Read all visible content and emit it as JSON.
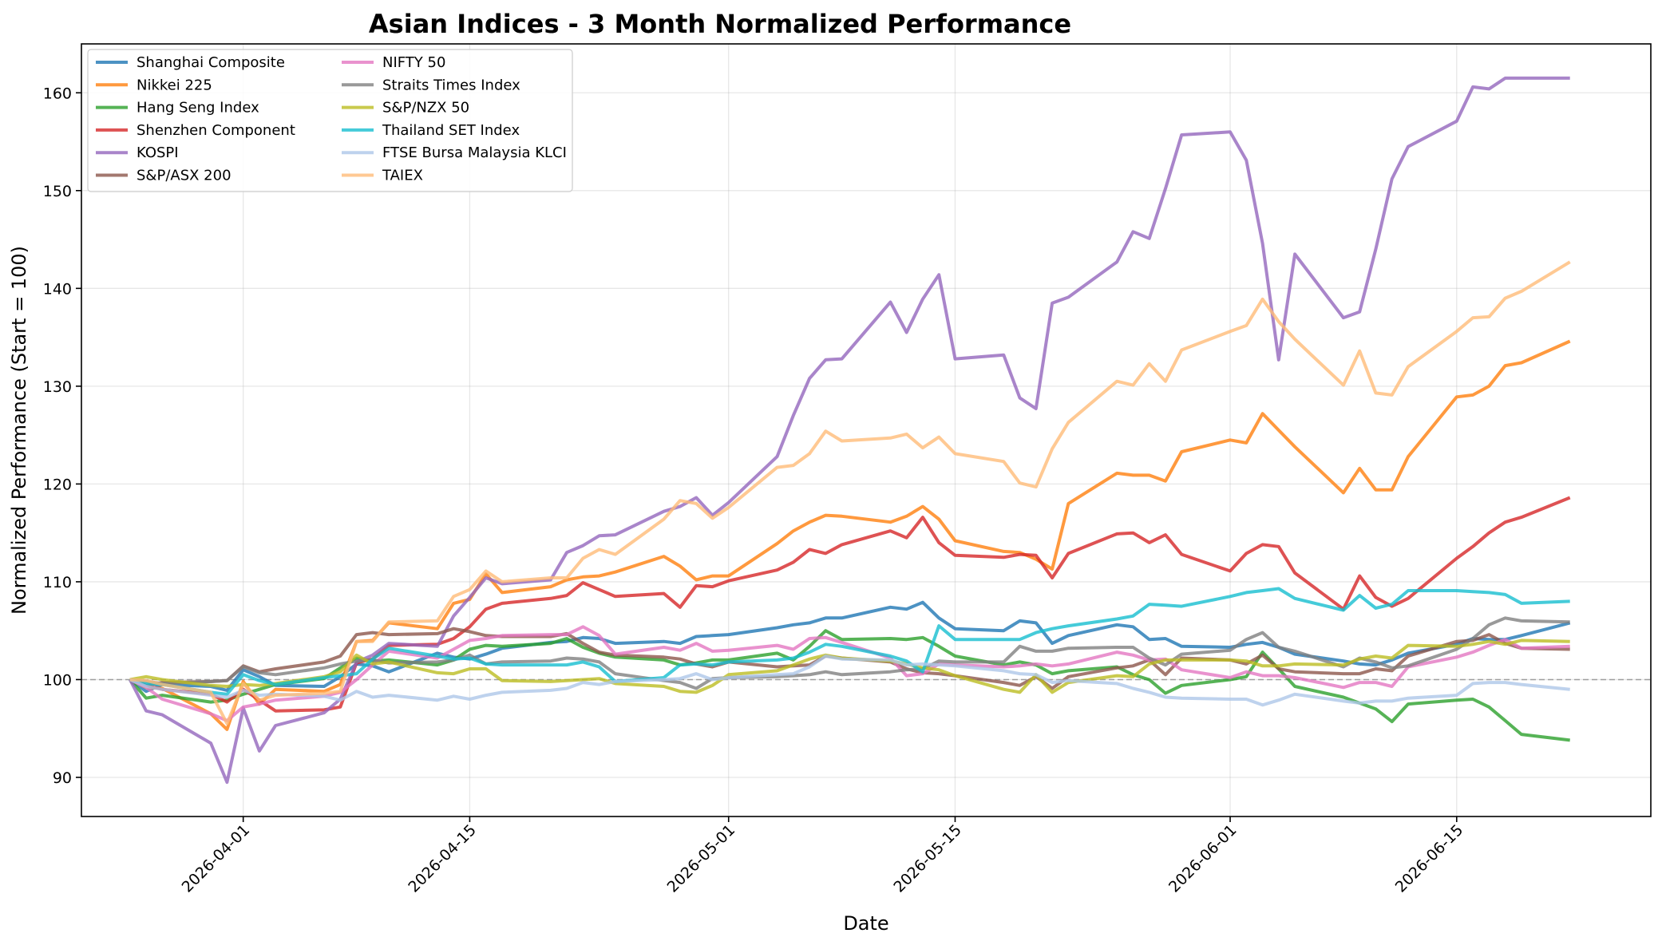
{
  "chart_data": {
    "type": "line",
    "title": "Asian Indices - 3 Month Normalized Performance",
    "xlabel": "Date",
    "ylabel": "Normalized Performance (Start = 100)",
    "xlim": [
      "2026-03-22",
      "2026-06-27"
    ],
    "ylim": [
      86,
      165
    ],
    "x_ticks": [
      "2026-04-01",
      "2026-04-15",
      "2026-05-01",
      "2026-05-15",
      "2026-06-01",
      "2026-06-15"
    ],
    "y_ticks": [
      90,
      100,
      110,
      120,
      130,
      140,
      150,
      160
    ],
    "reference_line": 100,
    "grid": true,
    "legend_position": "upper-left",
    "x": [
      "2026-03-25",
      "2026-03-26",
      "2026-03-27",
      "2026-03-30",
      "2026-03-31",
      "2026-04-01",
      "2026-04-02",
      "2026-04-03",
      "2026-04-06",
      "2026-04-07",
      "2026-04-08",
      "2026-04-09",
      "2026-04-10",
      "2026-04-13",
      "2026-04-14",
      "2026-04-15",
      "2026-04-16",
      "2026-04-17",
      "2026-04-20",
      "2026-04-21",
      "2026-04-22",
      "2026-04-23",
      "2026-04-24",
      "2026-04-27",
      "2026-04-28",
      "2026-04-29",
      "2026-04-30",
      "2026-05-01",
      "2026-05-04",
      "2026-05-05",
      "2026-05-06",
      "2026-05-07",
      "2026-05-08",
      "2026-05-11",
      "2026-05-12",
      "2026-05-13",
      "2026-05-14",
      "2026-05-15",
      "2026-05-18",
      "2026-05-19",
      "2026-05-20",
      "2026-05-21",
      "2026-05-22",
      "2026-05-25",
      "2026-05-26",
      "2026-05-27",
      "2026-05-28",
      "2026-05-29",
      "2026-06-01",
      "2026-06-02",
      "2026-06-03",
      "2026-06-04",
      "2026-06-05",
      "2026-06-08",
      "2026-06-09",
      "2026-06-10",
      "2026-06-11",
      "2026-06-12",
      "2026-06-15",
      "2026-06-16",
      "2026-06-17",
      "2026-06-18",
      "2026-06-19",
      "2026-06-22"
    ],
    "series": [
      {
        "name": "Shanghai Composite",
        "color": "#1f77b4",
        "values": [
          100,
          98.8,
          99.5,
          99.3,
          98.9,
          101.0,
          100.3,
          99.4,
          99.3,
          100.3,
          101.6,
          101.4,
          100.8,
          102.7,
          102.3,
          102.1,
          102.6,
          103.2,
          103.8,
          103.9,
          104.3,
          104.2,
          103.7,
          103.9,
          103.7,
          104.4,
          104.5,
          104.6,
          105.3,
          105.6,
          105.8,
          106.3,
          106.3,
          107.4,
          107.2,
          107.9,
          106.3,
          105.2,
          105.0,
          106.0,
          105.8,
          103.7,
          104.5,
          105.6,
          105.4,
          104.1,
          104.2,
          103.4,
          103.3,
          103.6,
          103.8,
          103.3,
          102.6,
          101.9,
          101.6,
          101.5,
          102.0,
          102.7,
          103.6,
          104.2,
          104.1,
          104.1,
          104.5,
          105.8
        ]
      },
      {
        "name": "Nikkei 225",
        "color": "#ff7f0e",
        "values": [
          100,
          99.2,
          99.1,
          96.5,
          94.9,
          99.8,
          97.5,
          99.0,
          98.8,
          99.5,
          103.9,
          104.0,
          105.8,
          105.2,
          107.8,
          108.2,
          110.8,
          108.9,
          109.5,
          110.2,
          110.5,
          110.6,
          111.0,
          112.6,
          111.6,
          110.2,
          110.6,
          110.6,
          113.9,
          115.2,
          116.1,
          116.8,
          116.7,
          116.1,
          116.7,
          117.7,
          116.4,
          114.2,
          113.1,
          113.0,
          112.3,
          111.3,
          118.0,
          121.1,
          120.9,
          120.9,
          120.3,
          123.3,
          124.5,
          124.2,
          127.2,
          125.5,
          123.8,
          119.1,
          121.6,
          119.4,
          119.4,
          122.8,
          128.9,
          129.1,
          130.0,
          132.1,
          132.4,
          134.6
        ]
      },
      {
        "name": "Hang Seng Index",
        "color": "#2ca02c",
        "values": [
          100,
          98.1,
          98.4,
          97.7,
          97.9,
          98.5,
          99.0,
          99.5,
          100.1,
          101.2,
          102.2,
          101.9,
          102.0,
          101.5,
          102.0,
          103.1,
          103.5,
          103.4,
          103.7,
          104.2,
          103.3,
          102.7,
          102.3,
          102.0,
          101.5,
          101.7,
          102.0,
          102.0,
          102.7,
          102.0,
          103.4,
          105.0,
          104.1,
          104.2,
          104.1,
          104.3,
          103.4,
          102.4,
          101.5,
          101.8,
          101.5,
          100.6,
          100.9,
          101.3,
          100.5,
          100.0,
          98.6,
          99.4,
          100.0,
          100.3,
          102.8,
          101.1,
          99.3,
          98.2,
          97.6,
          97.0,
          95.7,
          97.5,
          97.9,
          98.0,
          97.2,
          95.8,
          94.4,
          93.8
        ]
      },
      {
        "name": "Shenzhen Component",
        "color": "#d62728",
        "values": [
          100,
          99.4,
          99.0,
          98.5,
          97.7,
          99.0,
          97.9,
          96.8,
          96.9,
          97.2,
          101.7,
          102.1,
          103.5,
          103.6,
          104.2,
          105.4,
          107.2,
          107.8,
          108.3,
          108.6,
          109.9,
          109.2,
          108.5,
          108.8,
          107.4,
          109.6,
          109.5,
          110.1,
          111.2,
          112.0,
          113.3,
          112.9,
          113.8,
          115.2,
          114.5,
          116.6,
          114.0,
          112.7,
          112.5,
          112.8,
          112.7,
          110.4,
          112.9,
          114.9,
          115.0,
          114.0,
          114.8,
          112.8,
          111.1,
          112.9,
          113.8,
          113.6,
          110.9,
          107.2,
          110.6,
          108.4,
          107.5,
          108.3,
          112.4,
          113.6,
          115.0,
          116.1,
          116.6,
          118.6
        ]
      },
      {
        "name": "KOSPI",
        "color": "#9467bd",
        "values": [
          100,
          96.8,
          96.4,
          93.5,
          89.5,
          97.1,
          92.7,
          95.3,
          96.6,
          98.0,
          101.8,
          102.5,
          103.7,
          103.4,
          106.5,
          108.4,
          110.4,
          109.8,
          110.2,
          113.0,
          113.7,
          114.7,
          114.8,
          117.2,
          117.7,
          118.6,
          116.8,
          118.1,
          122.8,
          127.0,
          130.8,
          132.7,
          132.8,
          138.6,
          135.5,
          138.9,
          141.4,
          132.8,
          133.2,
          128.8,
          127.7,
          138.5,
          139.1,
          142.7,
          145.8,
          145.1,
          150.2,
          155.7,
          156.0,
          153.1,
          144.6,
          132.7,
          143.5,
          137.0,
          137.6,
          144.0,
          151.2,
          154.5,
          157.1,
          160.6,
          160.4,
          161.5,
          161.5,
          161.5
        ]
      },
      {
        "name": "S&P/ASX 200",
        "color": "#8c564b",
        "values": [
          100,
          99.4,
          99.7,
          99.8,
          99.9,
          101.4,
          100.8,
          101.1,
          101.8,
          102.4,
          104.6,
          104.8,
          104.6,
          104.7,
          105.2,
          104.9,
          104.5,
          104.4,
          104.4,
          104.7,
          103.7,
          102.8,
          102.5,
          102.3,
          102.1,
          101.6,
          101.3,
          101.8,
          101.3,
          101.4,
          101.5,
          102.4,
          102.2,
          101.8,
          101.1,
          100.7,
          100.6,
          100.4,
          99.7,
          99.4,
          100.3,
          99.1,
          100.3,
          101.2,
          101.4,
          102.0,
          100.5,
          102.2,
          102.0,
          101.6,
          102.5,
          101.1,
          100.8,
          100.6,
          100.6,
          101.1,
          100.9,
          102.4,
          103.9,
          104.0,
          104.6,
          103.7,
          103.2,
          103.1
        ]
      },
      {
        "name": "NIFTY 50",
        "color": "#e377c2",
        "values": [
          100,
          99.2,
          98.0,
          96.5,
          95.8,
          97.2,
          97.5,
          97.9,
          98.3,
          98.7,
          100.0,
          101.5,
          102.9,
          102.2,
          103.1,
          104.0,
          104.2,
          104.5,
          104.6,
          104.6,
          105.4,
          104.5,
          102.6,
          103.3,
          103.0,
          103.7,
          102.9,
          103.0,
          103.5,
          103.1,
          104.2,
          104.3,
          103.8,
          102.2,
          100.4,
          100.6,
          101.6,
          101.5,
          101.3,
          101.4,
          101.6,
          101.4,
          101.6,
          102.8,
          102.5,
          102.0,
          102.1,
          101.0,
          100.2,
          100.8,
          100.4,
          100.4,
          100.2,
          99.2,
          99.7,
          99.7,
          99.3,
          101.3,
          102.3,
          102.8,
          103.5,
          104.1,
          103.2,
          103.4
        ]
      },
      {
        "name": "Straits Times Index",
        "color": "#7f7f7f",
        "values": [
          100,
          99.8,
          99.6,
          99.8,
          99.9,
          101.3,
          100.7,
          100.5,
          101.2,
          101.6,
          101.9,
          102.0,
          101.7,
          101.8,
          102.0,
          102.5,
          101.6,
          101.8,
          101.9,
          102.2,
          102.1,
          101.8,
          100.6,
          99.9,
          99.7,
          99.1,
          100.1,
          100.2,
          100.3,
          100.4,
          100.5,
          100.8,
          100.5,
          100.8,
          101.0,
          101.1,
          101.9,
          101.8,
          101.8,
          103.4,
          102.9,
          102.9,
          103.2,
          103.3,
          103.3,
          102.2,
          101.5,
          102.6,
          103.0,
          104.1,
          104.8,
          103.3,
          102.9,
          101.3,
          102.2,
          101.8,
          101.2,
          101.4,
          103.1,
          104.2,
          105.6,
          106.3,
          106.0,
          105.9
        ]
      },
      {
        "name": "S&P/NZX 50",
        "color": "#bcbd22",
        "values": [
          100,
          100.3,
          100.0,
          99.4,
          99.3,
          99.5,
          99.4,
          99.6,
          100.3,
          100.8,
          102.5,
          101.6,
          101.8,
          100.7,
          100.6,
          101.1,
          101.1,
          99.9,
          99.8,
          99.9,
          100.0,
          100.1,
          99.6,
          99.3,
          98.8,
          98.7,
          99.4,
          100.5,
          100.9,
          101.5,
          102.1,
          102.5,
          102.2,
          101.9,
          101.6,
          101.2,
          101.0,
          100.4,
          99.0,
          98.7,
          100.5,
          98.7,
          99.7,
          100.4,
          100.3,
          101.6,
          102.0,
          102.0,
          102.0,
          101.9,
          101.4,
          101.4,
          101.6,
          101.5,
          102.1,
          102.4,
          102.2,
          103.5,
          103.4,
          103.6,
          103.9,
          103.6,
          104.0,
          103.9
        ]
      },
      {
        "name": "Thailand SET Index",
        "color": "#17becf",
        "values": [
          100,
          99.6,
          99.5,
          98.7,
          98.5,
          100.5,
          99.9,
          99.5,
          100.2,
          100.4,
          100.6,
          102.1,
          103.2,
          102.4,
          102.1,
          102.2,
          101.6,
          101.5,
          101.5,
          101.5,
          101.8,
          101.3,
          99.8,
          100.2,
          101.5,
          101.6,
          101.5,
          101.8,
          102.0,
          102.2,
          102.8,
          103.6,
          103.4,
          102.4,
          101.9,
          100.8,
          105.5,
          104.1,
          104.1,
          104.1,
          104.8,
          105.2,
          105.5,
          106.2,
          106.5,
          107.7,
          107.6,
          107.5,
          108.5,
          108.9,
          109.1,
          109.3,
          108.3,
          107.1,
          108.6,
          107.3,
          107.7,
          109.1,
          109.1,
          109.0,
          108.9,
          108.7,
          107.8,
          108.0
        ]
      },
      {
        "name": "FTSE Bursa Malaysia KLCI",
        "color": "#aec7e8",
        "values": [
          100,
          99.3,
          99.0,
          98.4,
          98.2,
          98.9,
          98.4,
          98.5,
          98.3,
          97.9,
          98.8,
          98.2,
          98.4,
          97.9,
          98.3,
          98.0,
          98.4,
          98.7,
          98.9,
          99.1,
          99.7,
          99.5,
          99.8,
          100.0,
          100.1,
          100.6,
          100.0,
          100.2,
          100.5,
          100.6,
          101.3,
          102.4,
          102.1,
          102.0,
          101.5,
          101.6,
          101.5,
          101.4,
          100.9,
          100.6,
          100.5,
          99.7,
          99.9,
          99.6,
          99.1,
          98.7,
          98.2,
          98.1,
          98.0,
          98.0,
          97.4,
          97.9,
          98.5,
          97.8,
          97.6,
          97.8,
          97.8,
          98.1,
          98.4,
          99.6,
          99.7,
          99.7,
          99.5,
          99.0
        ]
      },
      {
        "name": "TAIEX",
        "color": "#ffbb78",
        "values": [
          100,
          99.9,
          99.5,
          98.7,
          95.5,
          99.6,
          97.9,
          98.4,
          98.6,
          98.8,
          103.9,
          103.9,
          105.9,
          106.0,
          108.5,
          109.2,
          111.1,
          110.0,
          110.4,
          110.4,
          112.4,
          113.3,
          112.8,
          116.4,
          118.3,
          118.0,
          116.5,
          117.6,
          121.7,
          121.9,
          123.1,
          125.4,
          124.4,
          124.7,
          125.1,
          123.7,
          124.8,
          123.1,
          122.3,
          120.1,
          119.7,
          123.6,
          126.3,
          130.5,
          130.1,
          132.3,
          130.5,
          133.7,
          135.6,
          136.2,
          138.9,
          136.6,
          134.8,
          130.1,
          133.6,
          129.3,
          129.1,
          132.0,
          135.6,
          137.0,
          137.1,
          139.0,
          139.7,
          142.7
        ]
      }
    ]
  }
}
